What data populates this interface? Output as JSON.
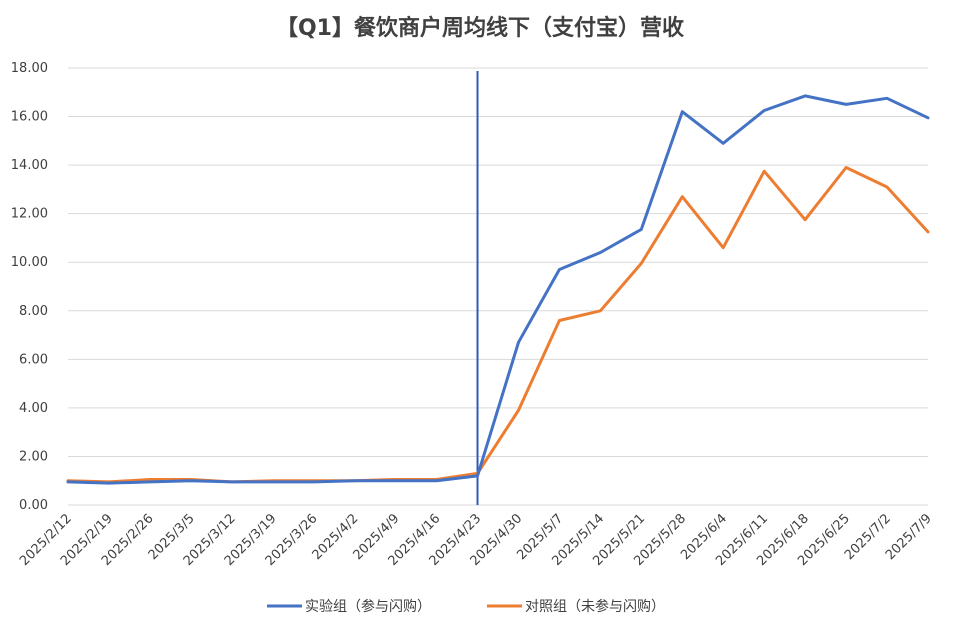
{
  "chart_data": {
    "type": "line",
    "title": "【Q1】餐饮商户周均线下（支付宝）营收",
    "xlabel": "",
    "ylabel": "",
    "ylim": [
      0,
      18
    ],
    "yticks": [
      "0.00",
      "2.00",
      "4.00",
      "6.00",
      "8.00",
      "10.00",
      "12.00",
      "14.00",
      "16.00",
      "18.00"
    ],
    "grid": true,
    "legend_position": "bottom",
    "x": [
      "2025/2/12",
      "2025/2/19",
      "2025/2/26",
      "2025/3/5",
      "2025/3/12",
      "2025/3/19",
      "2025/3/26",
      "2025/4/2",
      "2025/4/9",
      "2025/4/16",
      "2025/4/23",
      "2025/4/30",
      "2025/5/7",
      "2025/5/14",
      "2025/5/21",
      "2025/5/28",
      "2025/6/4",
      "2025/6/11",
      "2025/6/18",
      "2025/6/25",
      "2025/7/2",
      "2025/7/9"
    ],
    "vertical_marker": "2025/4/23",
    "series": [
      {
        "name": "实验组（参与闪购）",
        "color": "#4472C4",
        "values": [
          0.95,
          0.9,
          0.95,
          1.0,
          0.95,
          0.95,
          0.95,
          1.0,
          1.0,
          1.0,
          1.2,
          6.7,
          9.7,
          10.4,
          11.35,
          16.2,
          14.9,
          16.25,
          16.85,
          16.5,
          16.75,
          15.95
        ]
      },
      {
        "name": "对照组（未参与闪购）",
        "color": "#ED7D31",
        "values": [
          1.0,
          0.95,
          1.05,
          1.05,
          0.95,
          1.0,
          1.0,
          1.0,
          1.05,
          1.05,
          1.3,
          3.9,
          7.6,
          8.0,
          9.95,
          12.7,
          10.6,
          13.75,
          11.75,
          13.9,
          13.1,
          11.25
        ]
      }
    ],
    "marker_color": "#2F5BB7",
    "grid_color": "#D9D9D9"
  }
}
